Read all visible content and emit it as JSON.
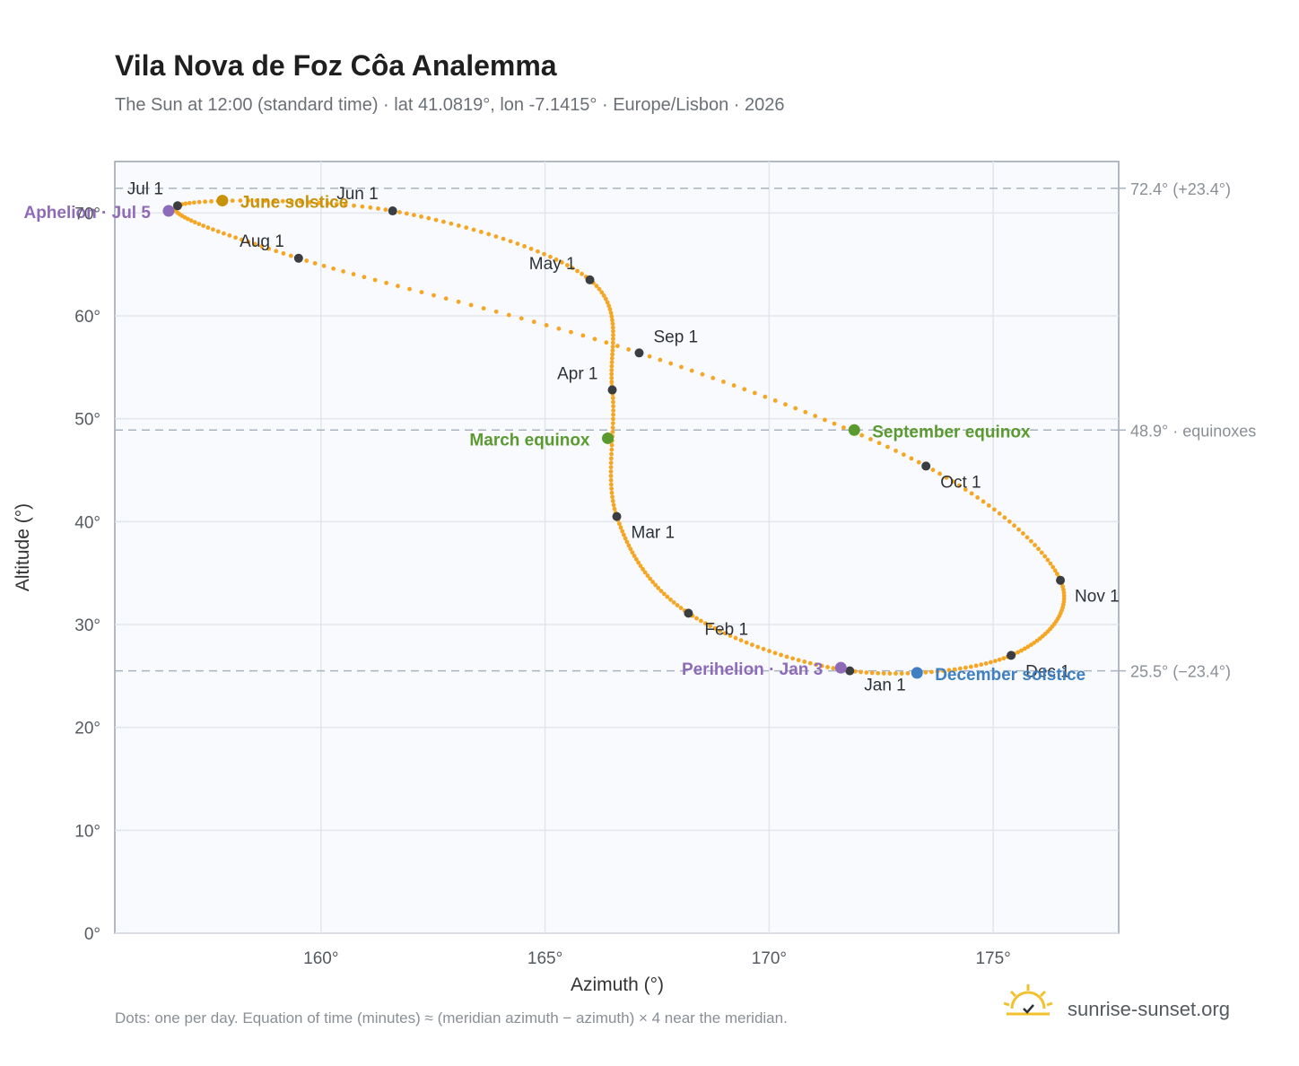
{
  "chart_data": {
    "type": "scatter",
    "title": "Vila Nova de Foz Côa Analemma",
    "subtitle": "The Sun at 12:00 (standard time) · lat 41.0819°, lon -7.1415° · Europe/Lisbon · 2026",
    "xlabel": "Azimuth (°)",
    "ylabel": "Altitude (°)",
    "xlim": [
      155.4,
      177.8
    ],
    "ylim": [
      0,
      75
    ],
    "x_ticks": [
      160,
      165,
      170,
      175
    ],
    "x_tick_labels": [
      "160°",
      "165°",
      "170°",
      "175°"
    ],
    "y_ticks": [
      0,
      10,
      20,
      30,
      40,
      50,
      60,
      70
    ],
    "y_tick_labels": [
      "0°",
      "10°",
      "20°",
      "30°",
      "40°",
      "50°",
      "60°",
      "70°"
    ],
    "grid": true,
    "reference_lines": [
      {
        "y": 72.4,
        "label": "72.4° (+23.4°)"
      },
      {
        "y": 48.9,
        "label": "48.9° · equinoxes"
      },
      {
        "y": 25.5,
        "label": "25.5° (−23.4°)"
      }
    ],
    "months": [
      {
        "label": "Jan 1",
        "x": 171.8,
        "y": 25.5
      },
      {
        "label": "Feb 1",
        "x": 168.2,
        "y": 31.1
      },
      {
        "label": "Mar 1",
        "x": 166.6,
        "y": 40.5
      },
      {
        "label": "Apr 1",
        "x": 166.5,
        "y": 52.8
      },
      {
        "label": "May 1",
        "x": 166.0,
        "y": 63.5
      },
      {
        "label": "Jun 1",
        "x": 161.6,
        "y": 70.2
      },
      {
        "label": "Jul 1",
        "x": 156.8,
        "y": 70.7
      },
      {
        "label": "Aug 1",
        "x": 159.5,
        "y": 65.6
      },
      {
        "label": "Sep 1",
        "x": 167.1,
        "y": 56.4
      },
      {
        "label": "Oct 1",
        "x": 173.5,
        "y": 45.4
      },
      {
        "label": "Nov 1",
        "x": 176.5,
        "y": 34.3
      },
      {
        "label": "Dec 1",
        "x": 175.4,
        "y": 27.0
      }
    ],
    "events": [
      {
        "label": "June solstice",
        "x": 157.8,
        "y": 71.2,
        "color": "#c8920a"
      },
      {
        "label": "Aphelion · Jul 5",
        "x": 156.6,
        "y": 70.2,
        "color": "#8e6bb8"
      },
      {
        "label": "March equinox",
        "x": 166.4,
        "y": 48.1,
        "color": "#5a9a2f"
      },
      {
        "label": "September equinox",
        "x": 171.9,
        "y": 48.9,
        "color": "#5a9a2f"
      },
      {
        "label": "Perihelion · Jan 3",
        "x": 171.6,
        "y": 25.8,
        "color": "#8e6bb8"
      },
      {
        "label": "December solstice",
        "x": 173.3,
        "y": 25.3,
        "color": "#3f7fc2"
      }
    ],
    "curve_color": "#f5a623",
    "month_marker_color": "#3a3d42",
    "footnote": "Dots: one per day. Equation of time (minutes) ≈ (meridian azimuth − azimuth) × 4 near the meridian.",
    "brand": "sunrise-sunset.org"
  }
}
